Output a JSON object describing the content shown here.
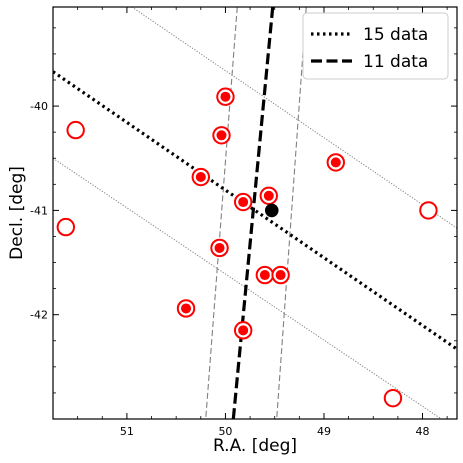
{
  "chart_data": {
    "type": "scatter",
    "title": "",
    "xlabel": "R.A. [deg]",
    "ylabel": "Decl. [deg]",
    "xlim": [
      51.75,
      47.65
    ],
    "ylim": [
      -43.0,
      -39.05
    ],
    "x_ticks": [
      51,
      50,
      49,
      48
    ],
    "x_tick_labels": [
      "51",
      "50",
      "49",
      "48"
    ],
    "y_ticks": [
      -40,
      -41,
      -42
    ],
    "y_tick_labels": [
      "-40",
      "-41",
      "-42"
    ],
    "grid": false,
    "legend": {
      "position": "top-right",
      "entries": [
        {
          "label": "15 data",
          "style": "dotted"
        },
        {
          "label": "11 data",
          "style": "dashed"
        }
      ]
    },
    "open_points": [
      {
        "x": 51.52,
        "y": -40.23
      },
      {
        "x": 51.62,
        "y": -41.16
      },
      {
        "x": 50.0,
        "y": -39.91
      },
      {
        "x": 50.04,
        "y": -40.28
      },
      {
        "x": 50.25,
        "y": -40.68
      },
      {
        "x": 48.88,
        "y": -40.54
      },
      {
        "x": 49.82,
        "y": -40.92
      },
      {
        "x": 49.56,
        "y": -40.86
      },
      {
        "x": 50.06,
        "y": -41.36
      },
      {
        "x": 49.6,
        "y": -41.62
      },
      {
        "x": 49.44,
        "y": -41.62
      },
      {
        "x": 50.4,
        "y": -41.94
      },
      {
        "x": 49.82,
        "y": -42.15
      },
      {
        "x": 47.94,
        "y": -41.0
      },
      {
        "x": 48.3,
        "y": -42.8
      }
    ],
    "filled_points": [
      {
        "x": 50.0,
        "y": -39.91
      },
      {
        "x": 50.04,
        "y": -40.28
      },
      {
        "x": 50.25,
        "y": -40.68
      },
      {
        "x": 48.88,
        "y": -40.54
      },
      {
        "x": 49.82,
        "y": -40.92
      },
      {
        "x": 49.56,
        "y": -40.86
      },
      {
        "x": 50.06,
        "y": -41.36
      },
      {
        "x": 49.6,
        "y": -41.62
      },
      {
        "x": 49.44,
        "y": -41.62
      },
      {
        "x": 50.4,
        "y": -41.94
      },
      {
        "x": 49.82,
        "y": -42.15
      }
    ],
    "center_point": {
      "x": 49.53,
      "y": -41.0
    },
    "fit_15": {
      "line": [
        [
          51.75,
          -39.67
        ],
        [
          47.65,
          -42.33
        ]
      ],
      "bounds": [
        [
          [
            51.75,
            -40.5
          ],
          [
            47.65,
            -43.1
          ]
        ],
        [
          [
            50.95,
            -39.05
          ],
          [
            47.65,
            -41.17
          ]
        ]
      ]
    },
    "fit_11": {
      "line": [
        [
          49.52,
          -39.05
        ],
        [
          49.92,
          -43.0
        ]
      ],
      "bounds": [
        [
          [
            49.88,
            -39.05
          ],
          [
            50.2,
            -43.0
          ]
        ],
        [
          [
            49.18,
            -39.05
          ],
          [
            49.48,
            -43.0
          ]
        ]
      ]
    },
    "colors": {
      "points": "#ff0000",
      "center": "#000000",
      "fit_line": "#000000",
      "bound_line": "#808080"
    }
  }
}
